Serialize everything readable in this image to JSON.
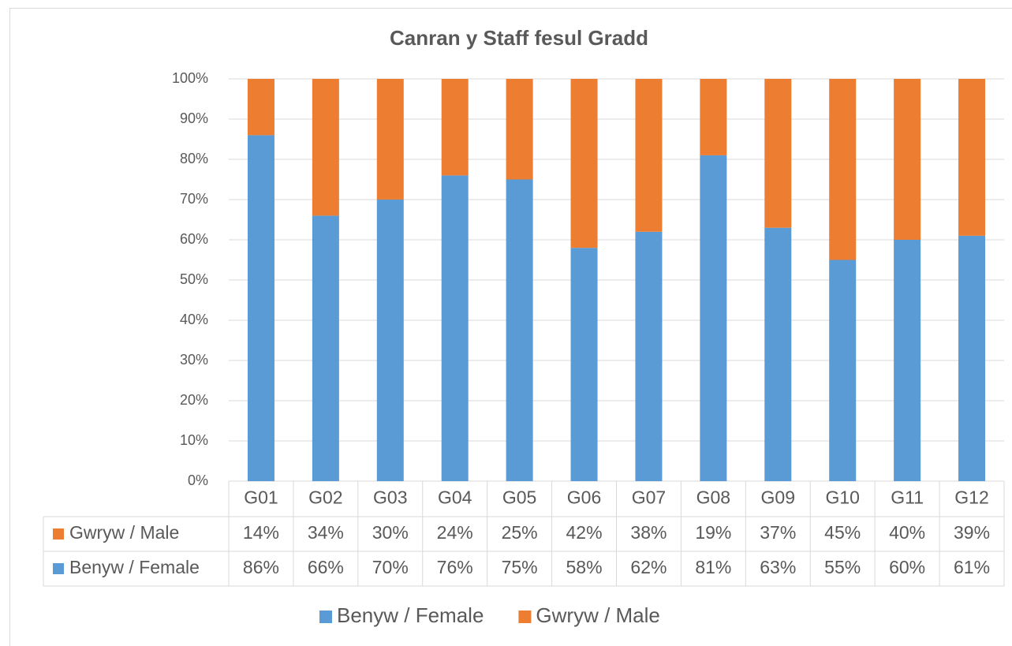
{
  "chart_data": {
    "type": "stacked_bar",
    "title": "Canran y Staff fesul Gradd",
    "categories": [
      "G01",
      "G02",
      "G03",
      "G04",
      "G05",
      "G06",
      "G07",
      "G08",
      "G09",
      "G10",
      "G11",
      "G12"
    ],
    "series": [
      {
        "name": "Benyw / Female",
        "color": "#5b9bd5",
        "values": [
          86,
          66,
          70,
          76,
          75,
          58,
          62,
          81,
          63,
          55,
          60,
          61
        ],
        "value_labels": [
          "86%",
          "66%",
          "70%",
          "76%",
          "75%",
          "58%",
          "62%",
          "81%",
          "63%",
          "55%",
          "60%",
          "61%"
        ]
      },
      {
        "name": "Gwryw / Male",
        "color": "#ed7d31",
        "values": [
          14,
          34,
          30,
          24,
          25,
          42,
          38,
          19,
          37,
          45,
          40,
          39
        ],
        "value_labels": [
          "14%",
          "34%",
          "30%",
          "24%",
          "25%",
          "42%",
          "38%",
          "19%",
          "37%",
          "45%",
          "40%",
          "39%"
        ]
      }
    ],
    "ylim": [
      0,
      100
    ],
    "yticks": [
      {
        "value": 0,
        "label": "0%"
      },
      {
        "value": 10,
        "label": "10%"
      },
      {
        "value": 20,
        "label": "20%"
      },
      {
        "value": 30,
        "label": "30%"
      },
      {
        "value": 40,
        "label": "40%"
      },
      {
        "value": 50,
        "label": "50%"
      },
      {
        "value": 60,
        "label": "60%"
      },
      {
        "value": 70,
        "label": "70%"
      },
      {
        "value": 80,
        "label": "80%"
      },
      {
        "value": 90,
        "label": "90%"
      },
      {
        "value": 100,
        "label": "100%"
      }
    ],
    "grid": true,
    "legend": "bottom"
  }
}
